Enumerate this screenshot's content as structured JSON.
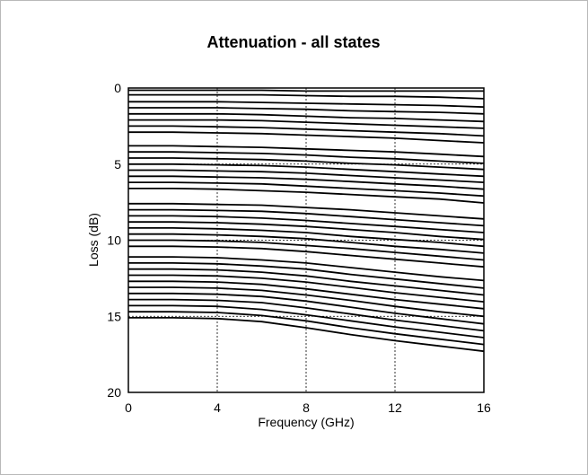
{
  "chart_data": {
    "type": "line",
    "title": "Attenuation - all states",
    "xlabel": "Frequency (GHz)",
    "ylabel": "Loss (dB)",
    "xlim": [
      0,
      16
    ],
    "ylim": [
      20,
      0
    ],
    "y_inverted": true,
    "xticks": [
      "0",
      "4",
      "8",
      "12",
      "16"
    ],
    "yticks": [
      "0",
      "5",
      "10",
      "15",
      "20"
    ],
    "grid": "dotted",
    "x": [
      0,
      2,
      4,
      6,
      8,
      10,
      12,
      14,
      16
    ],
    "series": [
      {
        "values": [
          0.15,
          0.15,
          0.15,
          0.15,
          0.2,
          0.2,
          0.2,
          0.2,
          0.2
        ]
      },
      {
        "values": [
          0.45,
          0.45,
          0.45,
          0.45,
          0.5,
          0.55,
          0.55,
          0.6,
          0.7
        ]
      },
      {
        "values": [
          0.9,
          0.9,
          0.9,
          0.95,
          1.0,
          1.05,
          1.1,
          1.15,
          1.25
        ]
      },
      {
        "values": [
          1.3,
          1.3,
          1.3,
          1.35,
          1.4,
          1.5,
          1.55,
          1.6,
          1.7
        ]
      },
      {
        "values": [
          1.7,
          1.7,
          1.7,
          1.75,
          1.85,
          1.95,
          2.0,
          2.1,
          2.2
        ]
      },
      {
        "values": [
          2.1,
          2.1,
          2.1,
          2.15,
          2.25,
          2.35,
          2.45,
          2.55,
          2.65
        ]
      },
      {
        "values": [
          2.5,
          2.5,
          2.55,
          2.6,
          2.7,
          2.8,
          2.9,
          3.0,
          3.15
        ]
      },
      {
        "values": [
          2.9,
          2.9,
          2.95,
          3.0,
          3.1,
          3.2,
          3.3,
          3.45,
          3.6
        ]
      },
      {
        "values": [
          3.8,
          3.8,
          3.85,
          3.9,
          4.0,
          4.1,
          4.2,
          4.35,
          4.5
        ]
      },
      {
        "values": [
          4.2,
          4.2,
          4.25,
          4.3,
          4.4,
          4.55,
          4.65,
          4.8,
          4.95
        ]
      },
      {
        "values": [
          4.6,
          4.6,
          4.65,
          4.7,
          4.8,
          4.95,
          5.05,
          5.2,
          5.35
        ]
      },
      {
        "values": [
          5.0,
          5.0,
          5.05,
          5.1,
          5.2,
          5.35,
          5.5,
          5.65,
          5.8
        ]
      },
      {
        "values": [
          5.4,
          5.4,
          5.45,
          5.5,
          5.6,
          5.75,
          5.9,
          6.05,
          6.2
        ]
      },
      {
        "values": [
          5.8,
          5.8,
          5.85,
          5.9,
          6.0,
          6.15,
          6.3,
          6.45,
          6.65
        ]
      },
      {
        "values": [
          6.2,
          6.2,
          6.25,
          6.3,
          6.45,
          6.6,
          6.75,
          6.9,
          7.1
        ]
      },
      {
        "values": [
          6.6,
          6.6,
          6.65,
          6.75,
          6.85,
          7.0,
          7.15,
          7.3,
          7.55
        ]
      },
      {
        "values": [
          7.6,
          7.6,
          7.65,
          7.7,
          7.85,
          8.0,
          8.2,
          8.4,
          8.6
        ]
      },
      {
        "values": [
          8.0,
          8.0,
          8.05,
          8.1,
          8.25,
          8.45,
          8.65,
          8.85,
          9.05
        ]
      },
      {
        "values": [
          8.4,
          8.4,
          8.45,
          8.55,
          8.7,
          8.9,
          9.1,
          9.3,
          9.5
        ]
      },
      {
        "values": [
          8.8,
          8.8,
          8.85,
          8.95,
          9.1,
          9.3,
          9.5,
          9.75,
          9.95
        ]
      },
      {
        "values": [
          9.2,
          9.2,
          9.25,
          9.35,
          9.5,
          9.75,
          9.95,
          10.15,
          10.4
        ]
      },
      {
        "values": [
          9.6,
          9.6,
          9.65,
          9.75,
          9.9,
          10.15,
          10.4,
          10.6,
          10.85
        ]
      },
      {
        "values": [
          10.0,
          10.0,
          10.05,
          10.15,
          10.35,
          10.55,
          10.8,
          11.05,
          11.3
        ]
      },
      {
        "values": [
          10.4,
          10.4,
          10.45,
          10.55,
          10.75,
          11.0,
          11.25,
          11.5,
          11.75
        ]
      },
      {
        "values": [
          11.1,
          11.1,
          11.15,
          11.3,
          11.5,
          11.8,
          12.1,
          12.4,
          12.65
        ]
      },
      {
        "values": [
          11.5,
          11.5,
          11.55,
          11.7,
          11.9,
          12.25,
          12.55,
          12.85,
          13.15
        ]
      },
      {
        "values": [
          11.9,
          11.9,
          11.95,
          12.1,
          12.35,
          12.7,
          13.0,
          13.3,
          13.6
        ]
      },
      {
        "values": [
          12.3,
          12.3,
          12.35,
          12.5,
          12.75,
          13.1,
          13.45,
          13.75,
          14.05
        ]
      },
      {
        "values": [
          12.7,
          12.7,
          12.75,
          12.9,
          13.2,
          13.55,
          13.9,
          14.2,
          14.5
        ]
      },
      {
        "values": [
          13.1,
          13.1,
          13.15,
          13.3,
          13.6,
          13.95,
          14.35,
          14.7,
          15.0
        ]
      },
      {
        "values": [
          13.5,
          13.5,
          13.55,
          13.7,
          14.0,
          14.4,
          14.8,
          15.15,
          15.5
        ]
      },
      {
        "values": [
          13.9,
          13.9,
          13.95,
          14.1,
          14.45,
          14.85,
          15.25,
          15.6,
          15.95
        ]
      },
      {
        "values": [
          14.3,
          14.3,
          14.35,
          14.55,
          14.9,
          15.3,
          15.7,
          16.05,
          16.4
        ]
      },
      {
        "values": [
          14.7,
          14.7,
          14.75,
          14.95,
          15.3,
          15.75,
          16.15,
          16.5,
          16.85
        ]
      },
      {
        "values": [
          15.1,
          15.1,
          15.15,
          15.35,
          15.75,
          16.2,
          16.6,
          16.95,
          17.3
        ]
      }
    ]
  }
}
